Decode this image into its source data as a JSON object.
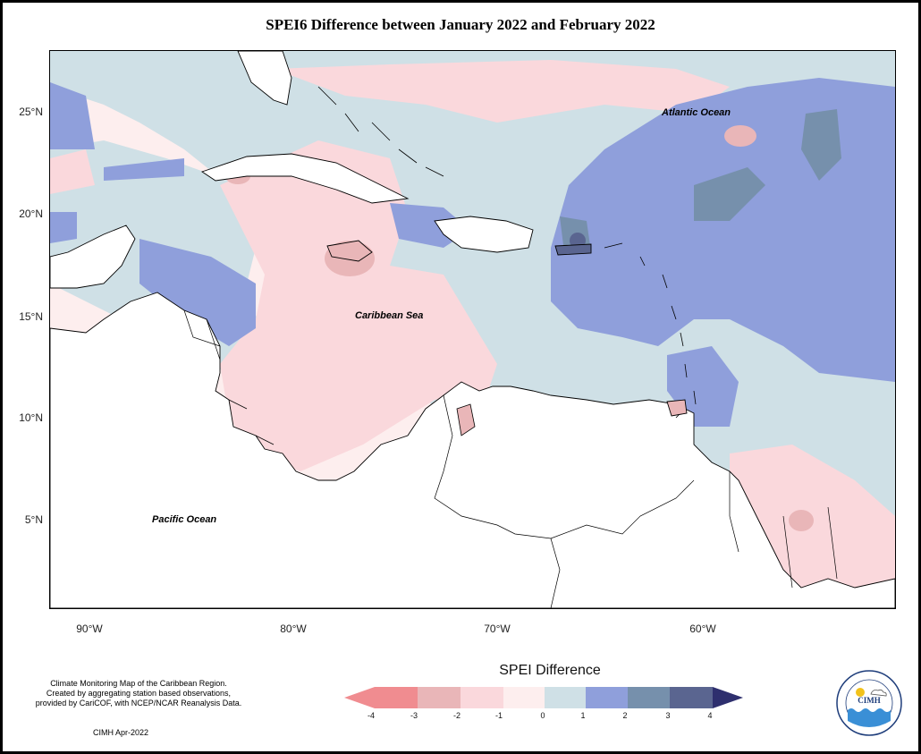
{
  "title": "SPEI6 Difference between January 2022 and February 2022",
  "axes": {
    "lat_labels": [
      "25°N",
      "20°N",
      "15°N",
      "10°N",
      "5°N"
    ],
    "lon_labels": [
      "90°W",
      "80°W",
      "70°W",
      "60°W"
    ]
  },
  "ocean_labels": {
    "atlantic": "Atlantic Ocean",
    "caribbean": "Caribbean Sea",
    "pacific": "Pacific Ocean"
  },
  "notes": {
    "line1": "Climate Monitoring Map of the Caribbean Region.",
    "line2": "Created by aggregating station based observations,",
    "line3": "provided by CariCOF, with NCEP/NCAR Reanalysis Data.",
    "credit": "CIMH Apr-2022"
  },
  "legend": {
    "title": "SPEI Difference",
    "ticks": [
      "-4",
      "-3",
      "-2",
      "-1",
      "0",
      "1",
      "2",
      "3",
      "4"
    ],
    "colors": [
      "#f08c90",
      "#e9b6b8",
      "#fad8dc",
      "#fdeeee",
      "#cfe0e6",
      "#8f9fdb",
      "#7690ac",
      "#5a6590",
      "#2e2f6e"
    ]
  },
  "logo": {
    "text": "CIMH",
    "name": "Caribbean Institute for Meteorology and Hydrology"
  }
}
